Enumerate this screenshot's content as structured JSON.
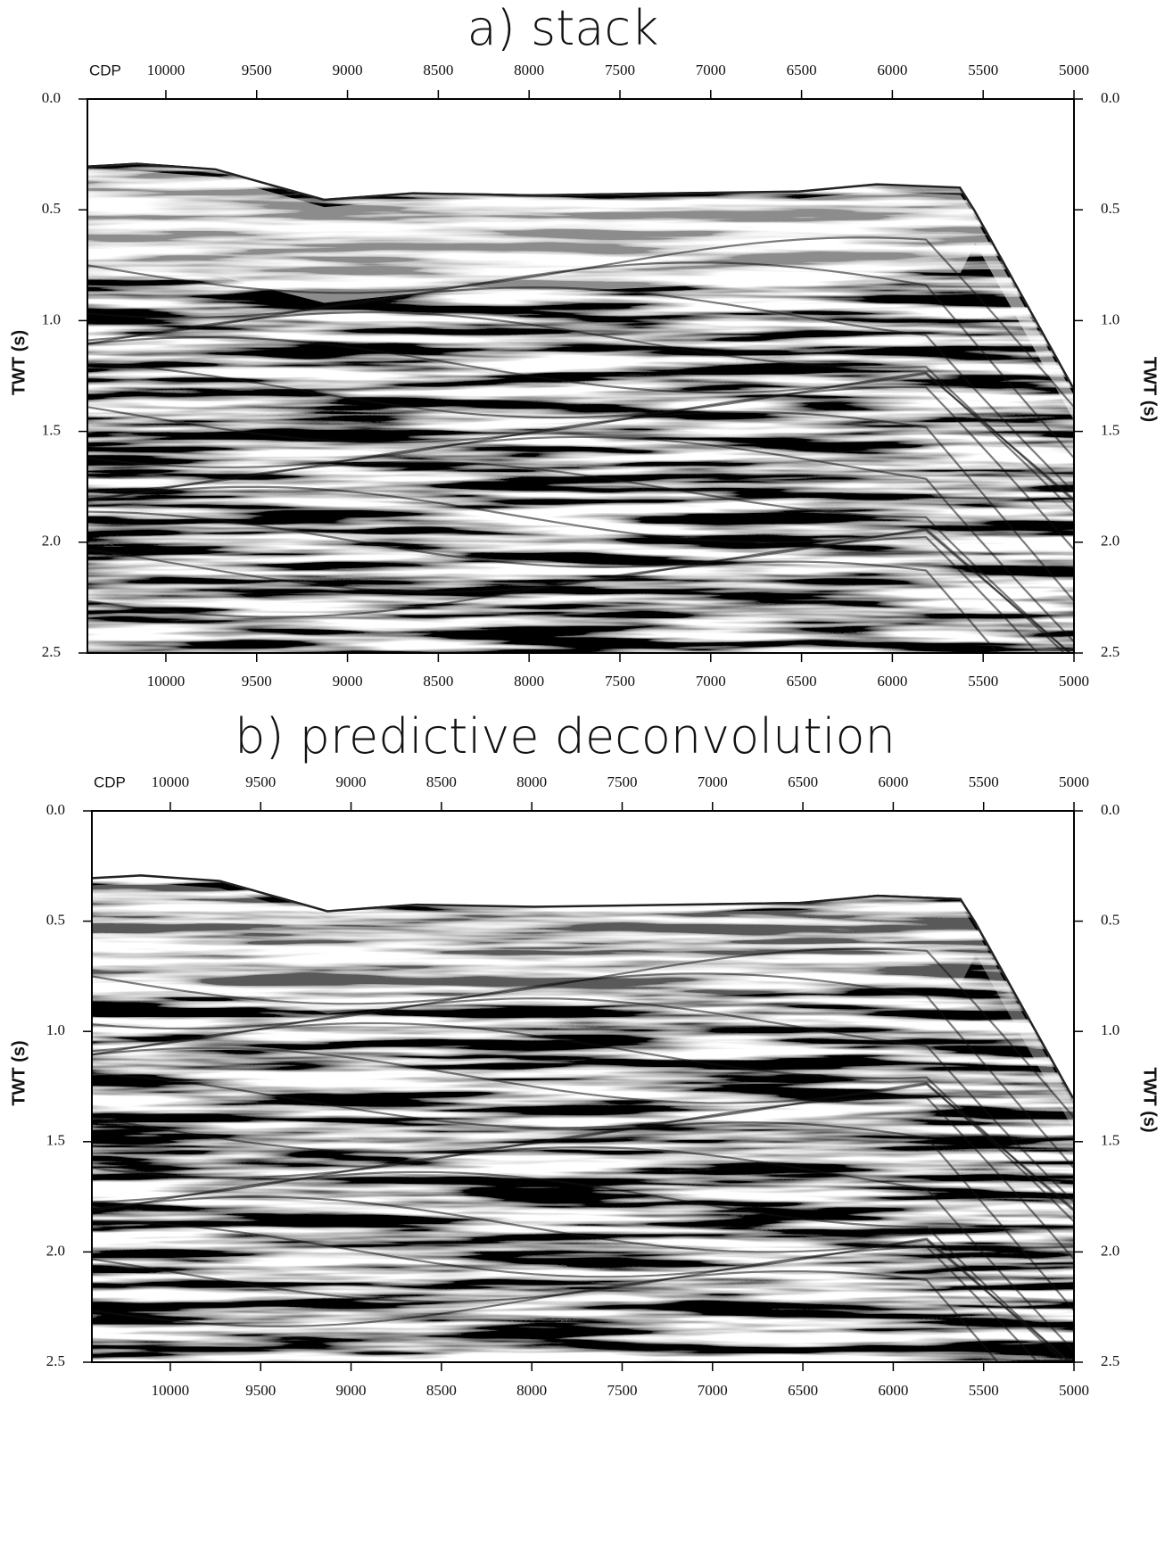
{
  "panels": [
    {
      "title": "a) stack",
      "x_label": "CDP",
      "y_label": "TWT (s)",
      "xlim": [
        10432,
        5000
      ],
      "xticks": [
        10000,
        9500,
        9000,
        8500,
        8000,
        7500,
        7000,
        6500,
        6000,
        5500,
        5000
      ],
      "ylim": [
        0,
        2.5
      ],
      "yticks": [
        {
          "value": 0,
          "label": "0.0"
        },
        0.5,
        {
          "value": 1,
          "label": "1.0"
        },
        1.5,
        {
          "value": 2,
          "label": "2.0"
        },
        2.5
      ]
    },
    {
      "title": "b) predictive deconvolution",
      "x_label": "CDP",
      "y_label": "TWT (s)",
      "xlim": [
        10434,
        5000
      ],
      "xticks": [
        10000,
        9500,
        9000,
        8500,
        8000,
        7500,
        7000,
        6500,
        6000,
        5500,
        5000
      ],
      "ylim": [
        0,
        2.5
      ],
      "yticks": [
        {
          "value": 0,
          "label": "0.0"
        },
        0.5,
        {
          "value": 1,
          "label": "1.0"
        },
        1.5,
        {
          "value": 2,
          "label": "2.0"
        },
        2.5
      ]
    }
  ]
}
